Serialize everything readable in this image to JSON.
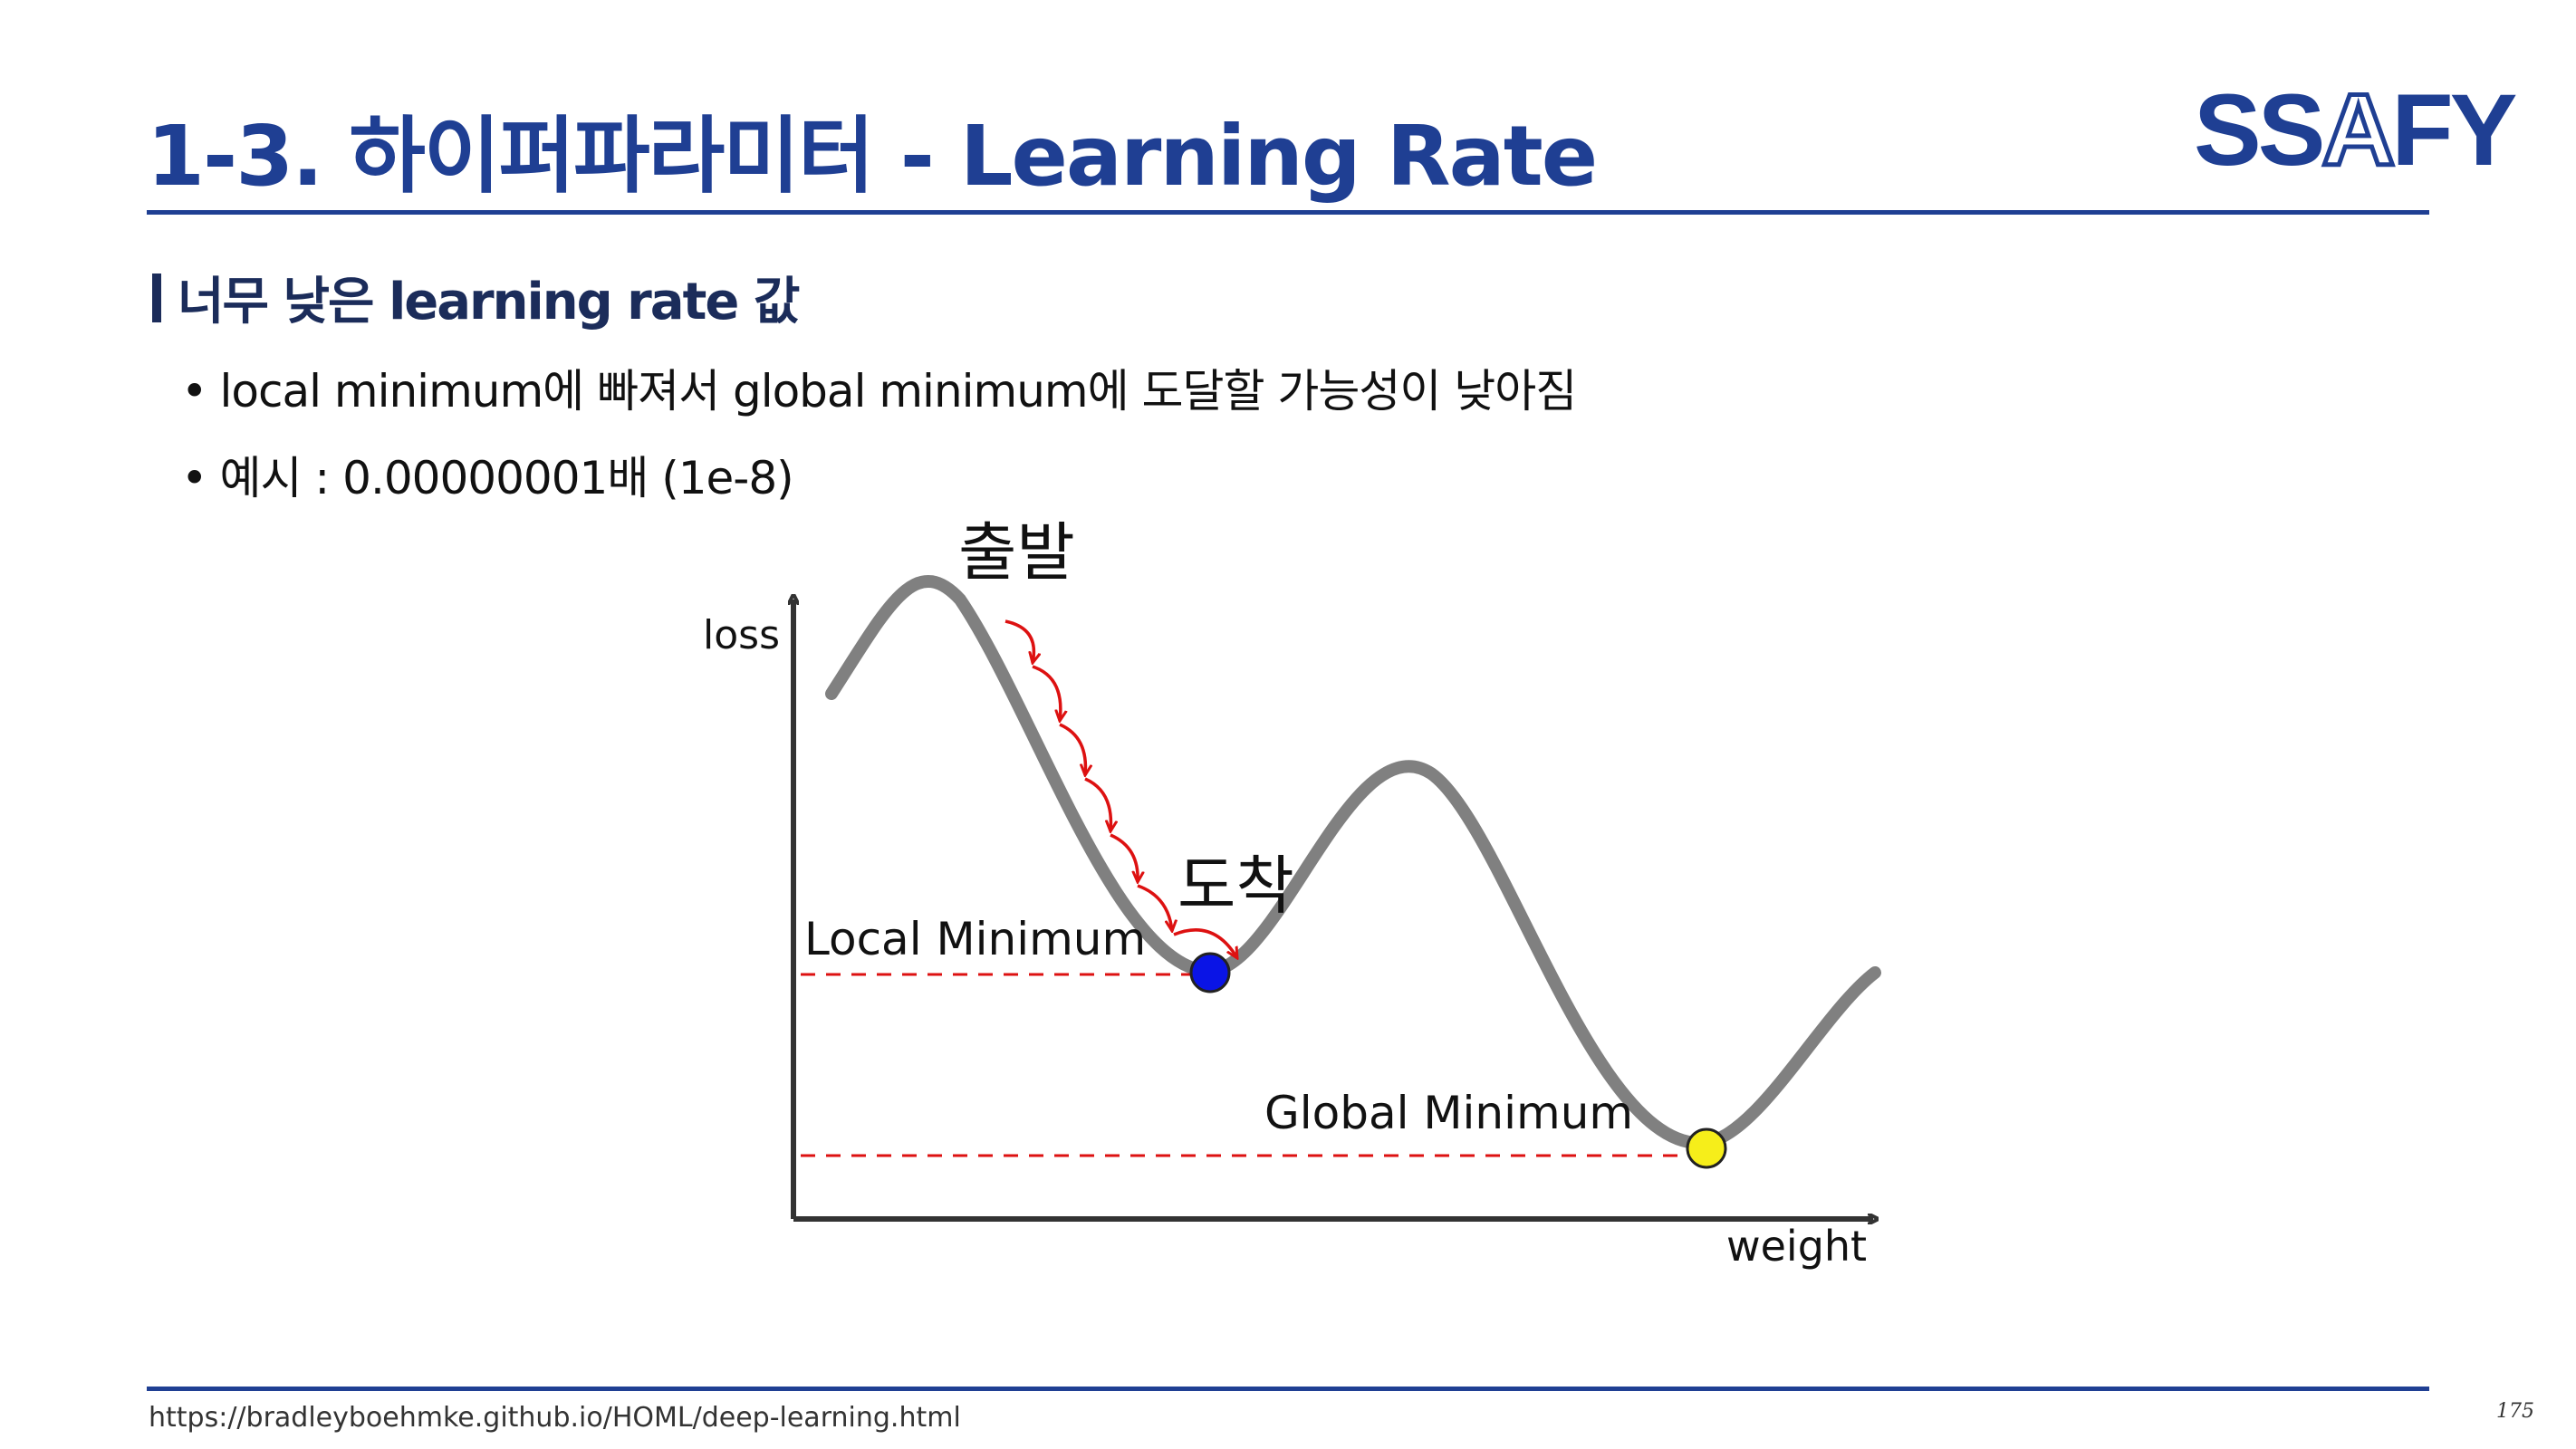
{
  "header": {
    "title": "1-3. 하이퍼파라미터 - Learning Rate",
    "logo": {
      "part1": "SS",
      "part2": "A",
      "part3": "FY",
      "brand_color": "#1f3f93"
    }
  },
  "section": {
    "heading": "너무 낮은 learning rate 값"
  },
  "bullets": [
    {
      "marker": "•",
      "text": "local minimum에 빠져서 global minimum에 도달할 가능성이 낮아짐"
    },
    {
      "marker": "•",
      "text": "예시 : 0.00000001배 (1e-8)"
    }
  ],
  "figure": {
    "y_axis_label": "loss",
    "x_axis_label": "weight",
    "start_label": "출발",
    "arrive_label": "도착",
    "local_min_label": "Local Minimum",
    "global_min_label": "Global Minimum",
    "colors": {
      "curve": "#808080",
      "step_arrows": "#dd1111",
      "local_point": "#0a14e6",
      "global_point": "#f6ee1a",
      "guide_lines": "#dd1111",
      "axes": "#333333"
    }
  },
  "footer": {
    "source": "https://bradleyboehmke.github.io/HOML/deep-learning.html",
    "page_number": "175"
  }
}
